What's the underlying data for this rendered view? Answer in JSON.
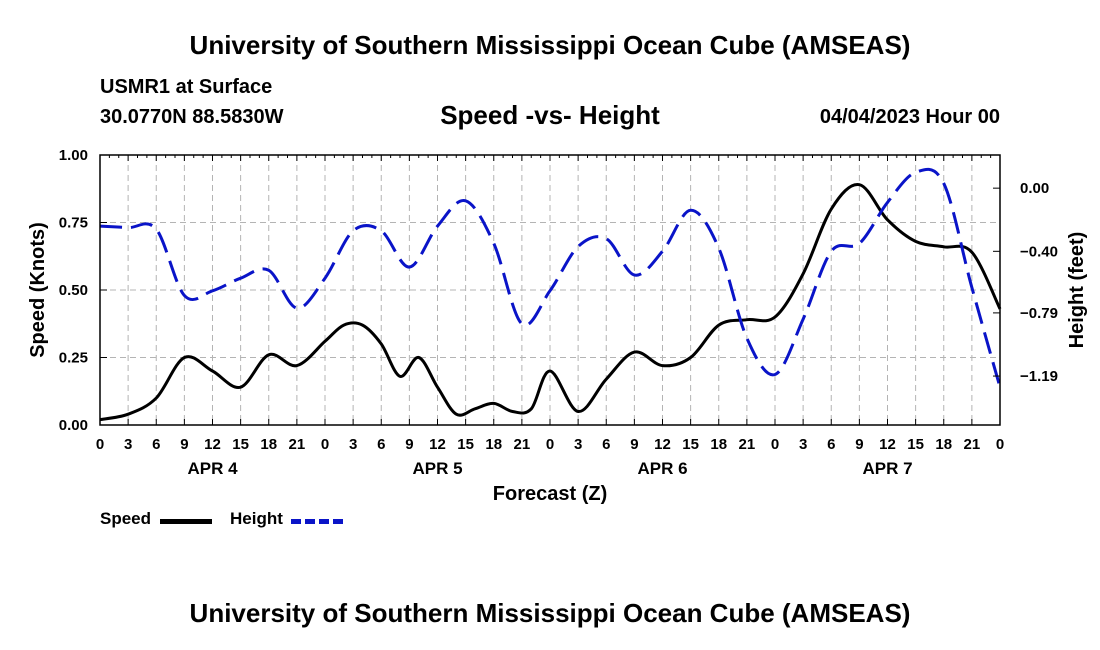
{
  "header": {
    "title": "University of Southern Mississippi Ocean Cube (AMSEAS)",
    "station": "USMR1 at Surface",
    "coords": "30.0770N  88.5830W",
    "subtitle": "Speed -vs- Height",
    "datetime": "04/04/2023 Hour 00",
    "footer_title": "University of Southern Mississippi Ocean Cube (AMSEAS)"
  },
  "legend": {
    "speed_label": "Speed",
    "height_label": "Height"
  },
  "colors": {
    "speed": "#000000",
    "height": "#0a14c8",
    "grid": "#b4b4b4"
  },
  "chart_data": {
    "type": "line",
    "title": "Speed -vs- Height",
    "xlabel": "Forecast (Z)",
    "ylabel": "Speed (Knots)",
    "y2label": "Height (feet)",
    "xlim": [
      0,
      96
    ],
    "ylim": [
      0,
      1.0
    ],
    "y2lim": [
      -1.5,
      0.21
    ],
    "x_tick_labels": [
      "0",
      "3",
      "6",
      "9",
      "12",
      "15",
      "18",
      "21",
      "0",
      "3",
      "6",
      "9",
      "12",
      "15",
      "18",
      "21",
      "0",
      "3",
      "6",
      "9",
      "12",
      "15",
      "18",
      "21",
      "0",
      "3",
      "6",
      "9",
      "12",
      "15",
      "18",
      "21",
      "0"
    ],
    "day_labels": [
      {
        "label": "APR 4",
        "hour": 12
      },
      {
        "label": "APR 5",
        "hour": 36
      },
      {
        "label": "APR 6",
        "hour": 60
      },
      {
        "label": "APR 7",
        "hour": 84
      }
    ],
    "y_ticks": [
      0.0,
      0.25,
      0.5,
      0.75,
      1.0
    ],
    "y_tick_labels": [
      "0.00",
      "0.25",
      "0.50",
      "0.75",
      "1.00"
    ],
    "y2_ticks": [
      0.0,
      -0.4,
      -0.79,
      -1.19
    ],
    "y2_tick_labels": [
      "0.00",
      "−0.40",
      "−0.79",
      "−1.19"
    ],
    "series": [
      {
        "name": "Speed",
        "axis": "left",
        "style": "solid",
        "x": [
          0,
          3,
          6,
          9,
          12,
          15,
          18,
          21,
          24,
          26,
          28,
          30,
          32,
          34,
          36,
          38,
          40,
          42,
          44,
          46,
          48,
          51,
          54,
          57,
          60,
          63,
          66,
          69,
          72,
          75,
          78,
          81,
          84,
          87,
          90,
          93,
          96
        ],
        "values": [
          0.02,
          0.04,
          0.1,
          0.25,
          0.2,
          0.14,
          0.26,
          0.22,
          0.31,
          0.37,
          0.37,
          0.3,
          0.18,
          0.25,
          0.14,
          0.04,
          0.06,
          0.08,
          0.05,
          0.06,
          0.2,
          0.05,
          0.17,
          0.27,
          0.22,
          0.25,
          0.37,
          0.39,
          0.4,
          0.56,
          0.8,
          0.89,
          0.76,
          0.68,
          0.66,
          0.64,
          0.43
        ]
      },
      {
        "name": "Height",
        "axis": "right",
        "style": "dashed",
        "x": [
          0,
          3,
          6,
          9,
          12,
          15,
          18,
          21,
          24,
          27,
          30,
          33,
          36,
          39,
          42,
          45,
          48,
          51,
          54,
          57,
          60,
          63,
          66,
          69,
          72,
          75,
          78,
          81,
          84,
          87,
          90,
          93,
          96
        ],
        "values": [
          -0.24,
          -0.25,
          -0.26,
          -0.68,
          -0.65,
          -0.57,
          -0.52,
          -0.76,
          -0.57,
          -0.27,
          -0.27,
          -0.5,
          -0.24,
          -0.08,
          -0.35,
          -0.86,
          -0.65,
          -0.37,
          -0.32,
          -0.55,
          -0.4,
          -0.14,
          -0.38,
          -0.95,
          -1.18,
          -0.83,
          -0.4,
          -0.35,
          -0.09,
          0.1,
          0.03,
          -0.63,
          -1.26
        ]
      }
    ]
  }
}
